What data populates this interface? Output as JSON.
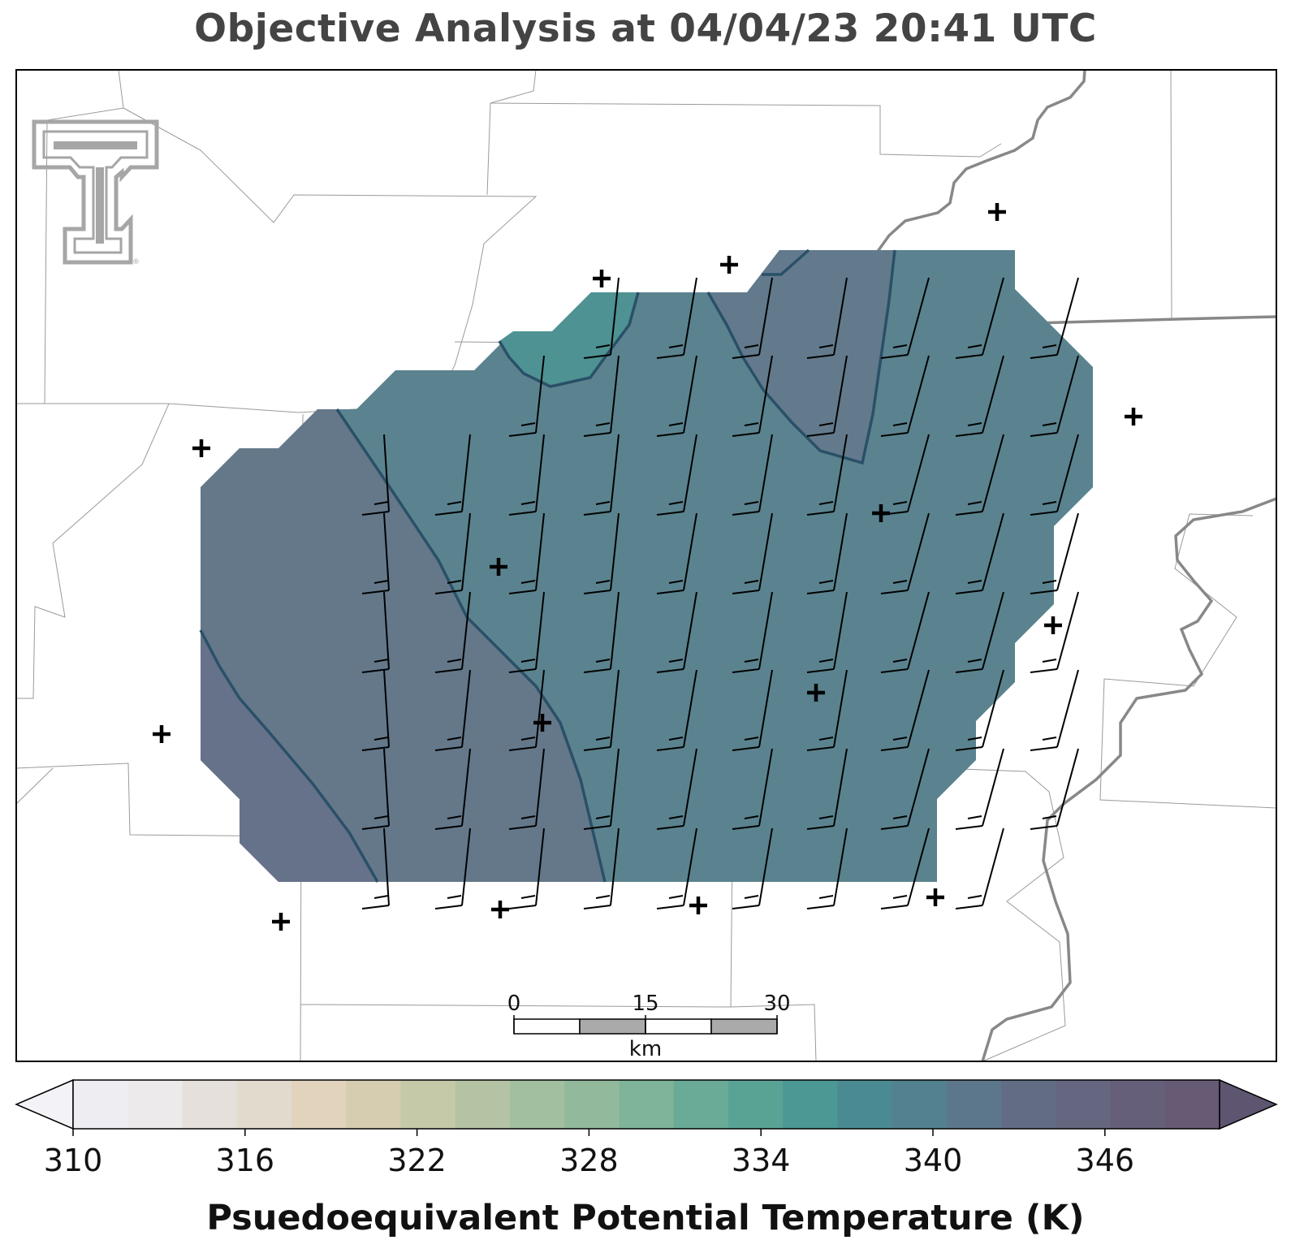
{
  "title": "Objective Analysis at 04/04/23 20:41 UTC",
  "logo": {
    "name": "texas-tech-double-t-logo",
    "color": "#a6a6a6"
  },
  "colorbar": {
    "label": "Psuedoequivalent Potential Temperature (K)",
    "min": 310,
    "max": 350,
    "step": 2,
    "ticks": [
      "310",
      "316",
      "322",
      "328",
      "334",
      "340",
      "346"
    ],
    "extend": "both",
    "colors": [
      "#eeeef2",
      "#eceaea",
      "#e6e0dc",
      "#e3dace",
      "#e2d3bd",
      "#d6cdb0",
      "#c6c9a8",
      "#b4c3a4",
      "#a2bfa0",
      "#92b99c",
      "#7fb499",
      "#6aab97",
      "#59a395",
      "#4b9894",
      "#4a8b93",
      "#53818f",
      "#5c778b",
      "#626d85",
      "#65667f",
      "#665f79",
      "#665a75"
    ],
    "under_color": "#f2f2f7",
    "over_color": "#5e5670"
  },
  "scale_bar": {
    "labels": [
      "0",
      "15",
      "30"
    ],
    "unit": "km"
  },
  "map": {
    "analysis_level_K": "≈340–344",
    "contour_color": "#2a5068",
    "state_border_color": "#888888",
    "county_line_color": "#9a9a9a",
    "station_marker": "plus-icon",
    "wind_barb_color": "#000000"
  }
}
